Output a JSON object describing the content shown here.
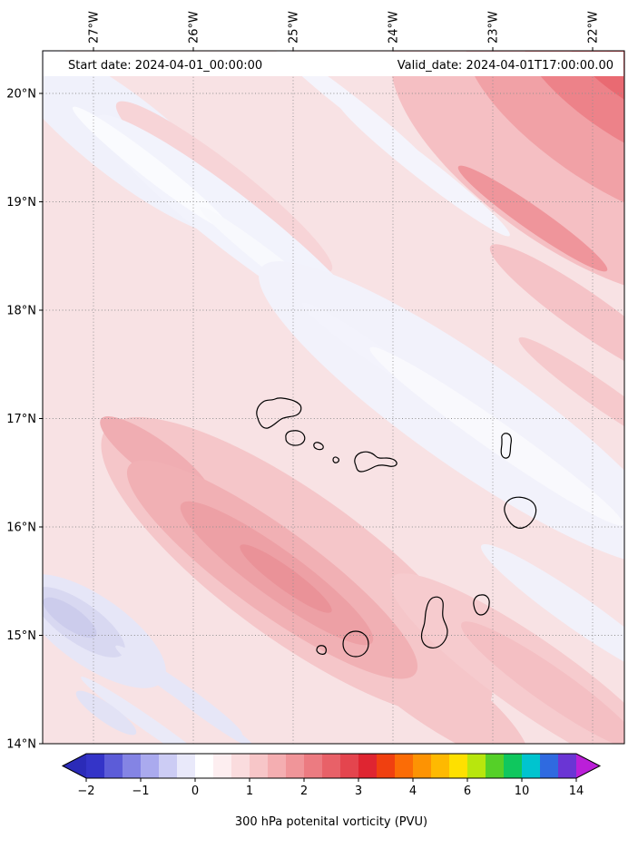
{
  "header": {
    "start_date": "Start date: 2024-04-01_00:00:00",
    "valid_date": "Valid_date: 2024-04-01T17:00:00.00"
  },
  "caption": "300 hPa potenital vorticity (PVU)",
  "axes": {
    "top_tick_labels": [
      "27°W",
      "26°W",
      "25°W",
      "24°W",
      "23°W",
      "22°W"
    ],
    "left_tick_labels": [
      "20°N",
      "19°N",
      "18°N",
      "17°N",
      "16°N",
      "15°N",
      "14°N"
    ]
  },
  "colorbar": {
    "tick_labels": [
      "−2",
      "−1",
      "0",
      "1",
      "2",
      "3",
      "4",
      "6",
      "10",
      "14"
    ],
    "segment_colors": [
      "#3434c8",
      "#5c5cd8",
      "#8484e4",
      "#aaaaee",
      "#ccccf4",
      "#e9e9fa",
      "#ffffff",
      "#fdeef0",
      "#fadcde",
      "#f7c6c8",
      "#f4aeb1",
      "#f09599",
      "#ec7b81",
      "#e86168",
      "#e4454e",
      "#df2531",
      "#f04010",
      "#fb6c06",
      "#fd9303",
      "#feb901",
      "#fee000",
      "#b8e60d",
      "#55d028",
      "#0fc75e",
      "#00c4cf",
      "#2f6ae0",
      "#6a35d4"
    ],
    "arrow_left_color": "#2b2bb8",
    "arrow_right_color": "#bb1fd8"
  },
  "chart_data": {
    "type": "heatmap",
    "title": "300 hPa potenital vorticity (PVU)",
    "annotations": [
      "Start date: 2024-04-01_00:00:00",
      "Valid_date: 2024-04-01T17:00:00.00"
    ],
    "x_tick_labels": [
      "27°W",
      "26°W",
      "25°W",
      "24°W",
      "23°W",
      "22°W"
    ],
    "y_tick_labels": [
      "20°N",
      "19°N",
      "18°N",
      "17°N",
      "16°N",
      "15°N",
      "14°N"
    ],
    "x_lon": [
      -27.25,
      -26.5,
      -25.75,
      -25.0,
      -24.25,
      -23.5,
      -22.75,
      -22.0
    ],
    "y_lat": [
      20.25,
      19.5,
      18.75,
      18.0,
      17.25,
      16.5,
      15.75,
      15.0,
      14.25
    ],
    "values_pvu": [
      [
        0.6,
        0.5,
        0.4,
        0.5,
        0.7,
        1.1,
        1.7,
        2.1
      ],
      [
        0.6,
        0.5,
        0.5,
        0.4,
        0.6,
        0.8,
        1.2,
        1.6
      ],
      [
        0.7,
        0.6,
        0.5,
        0.4,
        0.4,
        0.6,
        0.9,
        1.2
      ],
      [
        0.7,
        0.8,
        0.6,
        0.5,
        0.4,
        0.5,
        0.7,
        1.0
      ],
      [
        0.8,
        0.9,
        0.8,
        0.6,
        0.4,
        0.3,
        0.6,
        0.9
      ],
      [
        0.9,
        1.2,
        1.0,
        0.8,
        0.6,
        0.4,
        0.5,
        0.7
      ],
      [
        0.6,
        1.3,
        1.5,
        1.2,
        0.9,
        0.6,
        0.4,
        0.6
      ],
      [
        0.0,
        0.5,
        1.1,
        1.4,
        1.1,
        0.8,
        0.6,
        0.5
      ],
      [
        -0.3,
        0.1,
        0.4,
        0.8,
        1.1,
        1.0,
        0.8,
        0.6
      ]
    ],
    "colorbar_ticks": [
      -2,
      -1,
      0,
      1,
      2,
      3,
      4,
      6,
      10,
      14
    ],
    "colorbar_label": "300 hPa potenital vorticity (PVU)",
    "colorbar_extends": "both",
    "legend_position": "bottom",
    "grid": true,
    "gridline_style": "dotted"
  }
}
